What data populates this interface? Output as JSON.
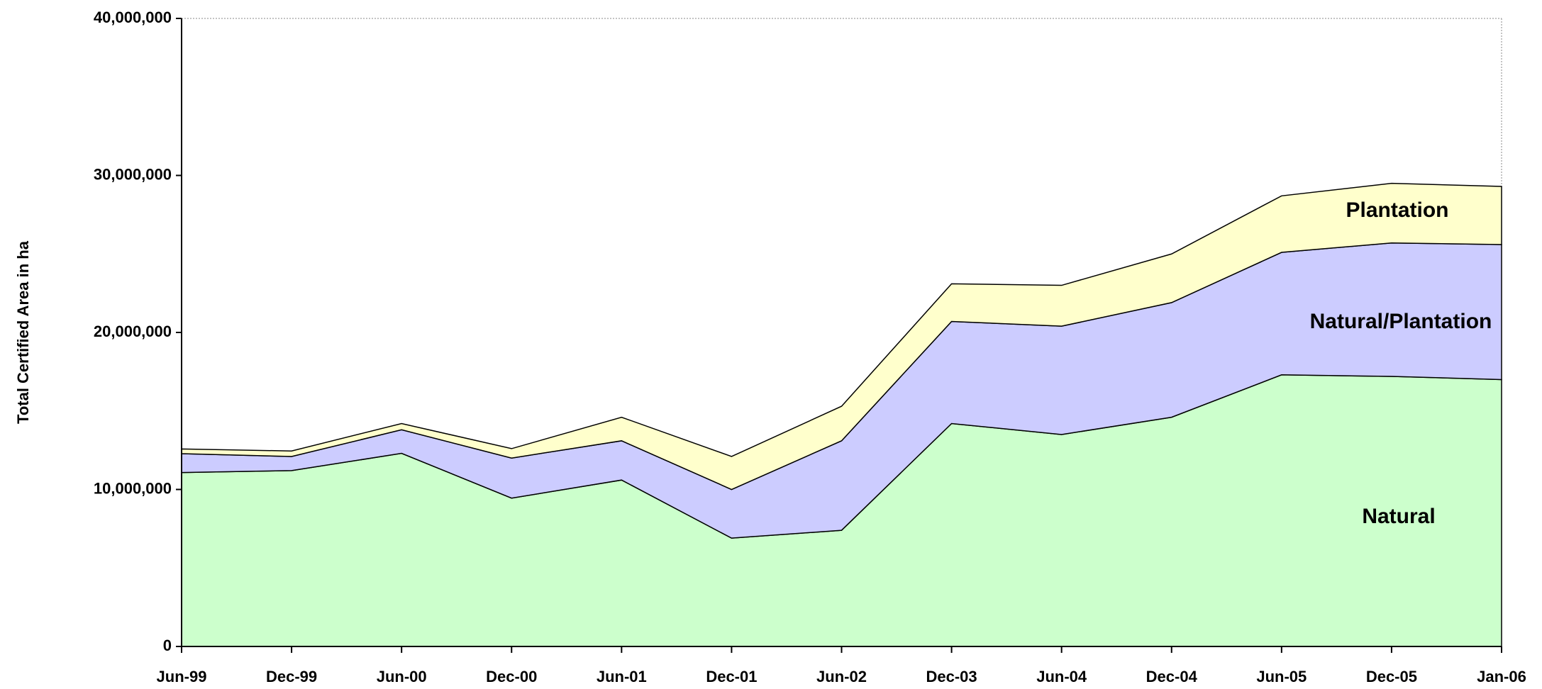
{
  "chart_data": {
    "type": "stacked_area",
    "y_label": "Total Certified Area in ha",
    "categories": [
      "Jun-99",
      "Dec-99",
      "Jun-00",
      "Dec-00",
      "Jun-01",
      "Dec-01",
      "Jun-02",
      "Dec-03",
      "Jun-04",
      "Dec-04",
      "Jun-05",
      "Dec-05",
      "Jan-06"
    ],
    "series": [
      {
        "name": "Natural",
        "color": "#ccffcc",
        "values": [
          11080000,
          11200000,
          12300000,
          9450000,
          10600000,
          6900000,
          7400000,
          14200000,
          13500000,
          14600000,
          17300000,
          17200000,
          17000000
        ]
      },
      {
        "name": "Natural/Plantation",
        "color": "#ccccff",
        "values": [
          1200000,
          900000,
          1500000,
          2550000,
          2500000,
          3100000,
          5700000,
          6500000,
          6900000,
          7300000,
          7800000,
          8500000,
          8600000
        ]
      },
      {
        "name": "Plantation",
        "color": "#ffffcc",
        "values": [
          300000,
          350000,
          400000,
          600000,
          1500000,
          2100000,
          2200000,
          2400000,
          2600000,
          3100000,
          3600000,
          3800000,
          3700000
        ]
      }
    ],
    "ylim": [
      0,
      40000000
    ],
    "yticks": [
      0,
      {
        "value": 10000000,
        "label": "10,000,000"
      },
      {
        "value": 20000000,
        "label": "20,000,000"
      },
      {
        "value": 30000000,
        "label": "30,000,000"
      },
      {
        "value": 40000000,
        "label": "40,000,000"
      }
    ]
  }
}
